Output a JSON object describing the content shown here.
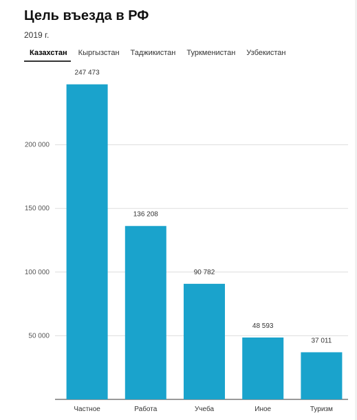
{
  "title": "Цель въезда в РФ",
  "subtitle": "2019 г.",
  "tabs": [
    {
      "label": "Казахстан",
      "active": true
    },
    {
      "label": "Кыргызстан",
      "active": false
    },
    {
      "label": "Таджикистан",
      "active": false
    },
    {
      "label": "Туркменистан",
      "active": false
    },
    {
      "label": "Узбекистан",
      "active": false
    }
  ],
  "colors": {
    "bar": "#1aa3cc",
    "grid": "#dddddd",
    "axis": "#333333"
  },
  "chart_data": {
    "type": "bar",
    "categories": [
      "Частное",
      "Работа",
      "Учеба",
      "Иное",
      "Туризм"
    ],
    "values": [
      247473,
      136208,
      90782,
      48593,
      37011
    ],
    "data_labels": [
      "247 473",
      "136 208",
      "90 782",
      "48 593",
      "37 011"
    ],
    "yticks": [
      {
        "value": 50000,
        "label": "50 000"
      },
      {
        "value": 100000,
        "label": "100 000"
      },
      {
        "value": 150000,
        "label": "150 000"
      },
      {
        "value": 200000,
        "label": "200 000"
      }
    ],
    "ylim": [
      0,
      250000
    ],
    "grid": true
  }
}
